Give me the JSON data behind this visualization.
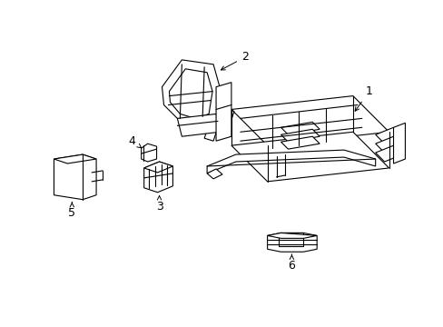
{
  "background_color": "#ffffff",
  "line_color": "#000000",
  "line_width": 0.8,
  "fig_width": 4.89,
  "fig_height": 3.6,
  "dpi": 100
}
